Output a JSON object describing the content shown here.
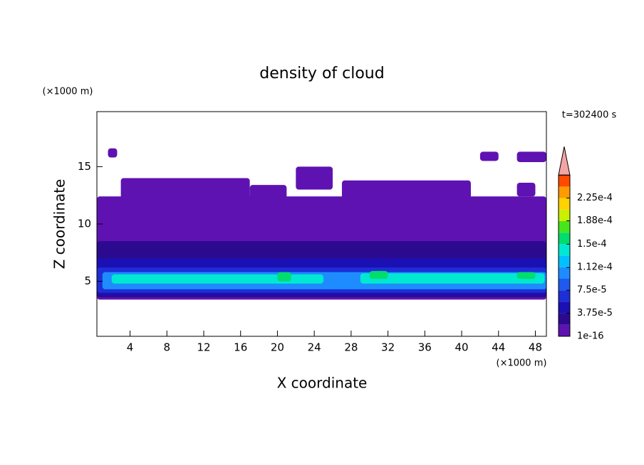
{
  "chart_data": {
    "type": "contour",
    "title": "density of cloud",
    "x_label": "X coordinate",
    "y_label": "Z coordinate",
    "x_unit": "(×1000 m)",
    "y_unit": "(×1000 m)",
    "time_label": "t=302400 s",
    "xlim": [
      0.4,
      49.2
    ],
    "ylim": [
      0.2,
      19.8
    ],
    "xticks": [
      4,
      8,
      12,
      16,
      20,
      24,
      28,
      32,
      36,
      40,
      44,
      48
    ],
    "yticks": [
      5,
      10,
      15
    ],
    "colorbar": {
      "colors": [
        "#5f12b2",
        "#2c0a8f",
        "#1a10b4",
        "#1e2ed6",
        "#1e5aee",
        "#1e8cff",
        "#00c0ff",
        "#00e8d2",
        "#00dc6e",
        "#46e61e",
        "#c8f000",
        "#ffd200",
        "#ff9b00",
        "#ff4a00"
      ],
      "extend_color": "#f4a4a4",
      "ticks": [
        {
          "value": 1e-16,
          "label": "1e-16"
        },
        {
          "value": 3.75e-05,
          "label": "3.75e-5"
        },
        {
          "value": 7.5e-05,
          "label": "7.5e-5"
        },
        {
          "value": 0.000112,
          "label": "1.12e-4"
        },
        {
          "value": 0.00015,
          "label": "1.5e-4"
        },
        {
          "value": 0.000188,
          "label": "1.88e-4"
        },
        {
          "value": 0.000225,
          "label": "2.25e-4"
        }
      ]
    },
    "bands": [
      {
        "level": 0,
        "x": [
          0.4,
          49.2
        ],
        "z": [
          3.4,
          12.4
        ]
      },
      {
        "level": 0,
        "x": [
          3,
          17
        ],
        "z": [
          12,
          14
        ]
      },
      {
        "level": 0,
        "x": [
          17,
          21
        ],
        "z": [
          12,
          13.4
        ]
      },
      {
        "level": 0,
        "x": [
          27,
          41
        ],
        "z": [
          12,
          13.8
        ]
      },
      {
        "level": 0,
        "x": [
          22,
          26
        ],
        "z": [
          13,
          15
        ]
      },
      {
        "level": 0,
        "x": [
          1.6,
          2.6
        ],
        "z": [
          15.8,
          16.6
        ]
      },
      {
        "level": 0,
        "x": [
          42,
          44
        ],
        "z": [
          15.5,
          16.3
        ]
      },
      {
        "level": 0,
        "x": [
          46,
          49.2
        ],
        "z": [
          15.4,
          16.3
        ]
      },
      {
        "level": 0,
        "x": [
          46,
          48
        ],
        "z": [
          12.4,
          13.6
        ]
      },
      {
        "level": 1,
        "x": [
          0.4,
          49.2
        ],
        "z": [
          3.6,
          8.5
        ]
      },
      {
        "level": 2,
        "x": [
          0.4,
          49.2
        ],
        "z": [
          3.8,
          7
        ]
      },
      {
        "level": 3,
        "x": [
          0.4,
          49.2
        ],
        "z": [
          4,
          6.2
        ]
      },
      {
        "level": 5,
        "x": [
          1,
          49.2
        ],
        "z": [
          4.3,
          5.8
        ]
      },
      {
        "level": 7,
        "x": [
          2,
          25
        ],
        "z": [
          4.8,
          5.6
        ]
      },
      {
        "level": 7,
        "x": [
          29,
          49
        ],
        "z": [
          4.8,
          5.7
        ]
      },
      {
        "level": 8,
        "x": [
          20,
          21.5
        ],
        "z": [
          5,
          5.8
        ]
      },
      {
        "level": 8,
        "x": [
          30,
          32
        ],
        "z": [
          5.2,
          5.9
        ]
      },
      {
        "level": 8,
        "x": [
          46,
          48
        ],
        "z": [
          5.2,
          5.8
        ]
      }
    ]
  }
}
